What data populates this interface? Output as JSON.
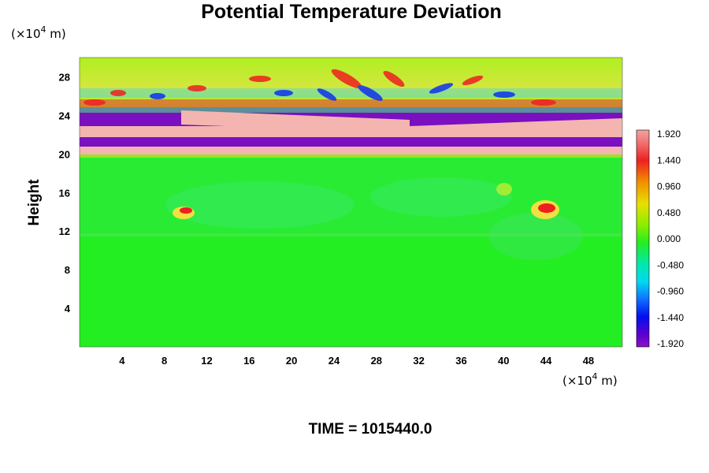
{
  "chart_data": {
    "type": "heatmap",
    "title": "Potential Temperature Deviation",
    "ylabel": "Height",
    "x_unit_label": {
      "prefix": "(×10",
      "exp": "4",
      "suffix": " m)"
    },
    "y_unit_label": {
      "prefix": "(×10",
      "exp": "4",
      "suffix": " m)"
    },
    "x_ticks": [
      "4",
      "8",
      "12",
      "16",
      "20",
      "24",
      "28",
      "32",
      "36",
      "40",
      "44",
      "48"
    ],
    "y_ticks": [
      "4",
      "8",
      "12",
      "16",
      "20",
      "24",
      "28"
    ],
    "xlim": [
      0,
      51.2
    ],
    "ylim": [
      0,
      30
    ],
    "colorbar": {
      "labels": [
        "1.920",
        "1.440",
        "0.960",
        "0.480",
        "0.000",
        "-0.480",
        "-0.960",
        "-1.440",
        "-1.920"
      ],
      "range": [
        -1.92,
        1.92
      ]
    },
    "footer": "TIME = 1015440.0",
    "colors": {
      "background_field": "#22ee22",
      "positive_band": "#f4b4b0",
      "negative_band": "#7a10c0"
    }
  }
}
